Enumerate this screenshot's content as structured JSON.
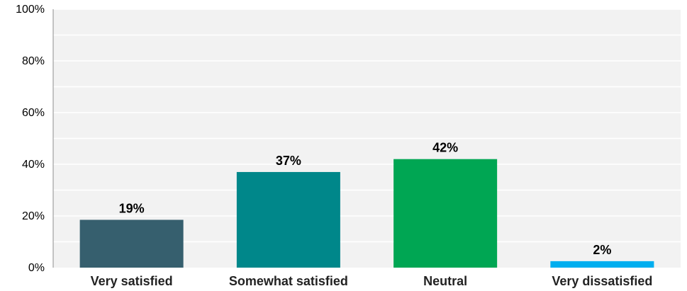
{
  "chart_data": {
    "type": "bar",
    "categories": [
      "Very satisfied",
      "Somewhat satisfied",
      "Neutral",
      "Very dissatisfied"
    ],
    "values": [
      18.5,
      37,
      42,
      2.5
    ],
    "value_labels": [
      "19%",
      "37%",
      "42%",
      "2%"
    ],
    "colors": [
      "#365f6e",
      "#00878a",
      "#00a653",
      "#00aeef"
    ],
    "ylim": [
      0,
      100
    ],
    "y_ticks": [
      0,
      20,
      40,
      60,
      80,
      100
    ],
    "y_tick_labels": [
      "0%",
      "20%",
      "40%",
      "60%",
      "80%",
      "100%"
    ],
    "plot_background": "#f2f2f2",
    "gridline_color": "#ffffff",
    "grid": true,
    "legend": "none",
    "title": "",
    "xlabel": "",
    "ylabel": ""
  }
}
